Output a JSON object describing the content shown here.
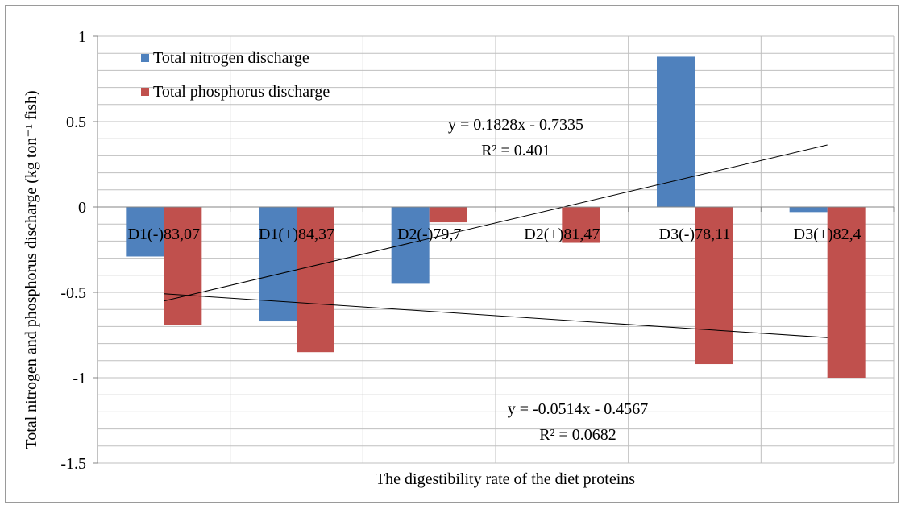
{
  "chart_data": {
    "type": "bar",
    "title": "",
    "xlabel": "The digestibility rate of the diet proteins",
    "ylabel": "Total nitrogen and phosphorus discharge (kg ton⁻¹ fish)",
    "ylim": [
      -1.5,
      1
    ],
    "yticks": [
      "1",
      "0.5",
      "0",
      "-0.5",
      "-1",
      "-1.5"
    ],
    "ytick_values": [
      1,
      0.5,
      0,
      -0.5,
      -1,
      -1.5
    ],
    "grid": true,
    "legend_position": "top-left",
    "categories": [
      "D1(-)83,07",
      "D1(+)84,37",
      "D2(-)79,7",
      "D2(+)81,47",
      "D3(-)78,11",
      "D3(+)82,4"
    ],
    "series": [
      {
        "name": "Total nitrogen discharge",
        "color": "#4F81BD",
        "values": [
          -0.29,
          -0.67,
          -0.45,
          0.0,
          0.88,
          -0.03
        ]
      },
      {
        "name": "Total phosphorus discharge",
        "color": "#C0504D",
        "values": [
          -0.69,
          -0.85,
          -0.09,
          -0.21,
          -0.92,
          -1.0
        ]
      }
    ],
    "trendlines": [
      {
        "series": "Total nitrogen discharge",
        "slope": 0.1828,
        "intercept": -0.7335,
        "equation": "y = 0.1828x - 0.7335",
        "r2": "R² = 0.401"
      },
      {
        "series": "Total phosphorus discharge",
        "slope": -0.0514,
        "intercept": -0.4567,
        "equation": "y = -0.0514x - 0.4567",
        "r2": "R² = 0.0682"
      }
    ]
  }
}
